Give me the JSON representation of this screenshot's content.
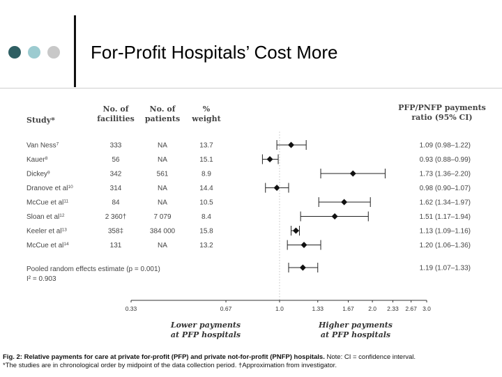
{
  "slide": {
    "title": "For-Profit Hospitals’ Cost More",
    "dot_colors": [
      "#2f5f63",
      "#9ccbd0",
      "#c8c8c8"
    ]
  },
  "table": {
    "headers": {
      "study": "Study*",
      "facilities": [
        "No. of",
        "facilities"
      ],
      "patients": [
        "No. of",
        "patients"
      ],
      "weight": [
        "%",
        "weight"
      ],
      "ratio": [
        "PFP/PNFP payments",
        "ratio (95% CI)"
      ]
    },
    "pooled_label": [
      "Pooled random effects estimate (p = 0.001)",
      "I² = 0.903"
    ]
  },
  "chart_data": {
    "type": "forest",
    "x_scale": "log",
    "xlim": [
      0.33,
      3.0
    ],
    "xticks": [
      "0.33",
      "0.67",
      "1.0",
      "1.33",
      "1.67",
      "2.0",
      "2.33",
      "2.67",
      "3.0"
    ],
    "xtick_values": [
      0.33,
      0.67,
      1.0,
      1.33,
      1.67,
      2.0,
      2.33,
      2.67,
      3.0
    ],
    "reference_line": 1.0,
    "left_label": [
      "Lower payments",
      "at PFP hospitals"
    ],
    "right_label": [
      "Higher payments",
      "at PFP hospitals"
    ],
    "rows": [
      {
        "study": "Van Ness",
        "ref": "7",
        "facilities": "333",
        "patients": "NA",
        "weight": "13.7",
        "ratio_text": "1.09 (0.98–1.22)",
        "est": 1.09,
        "lo": 0.98,
        "hi": 1.22
      },
      {
        "study": "Kauer",
        "ref": "8",
        "facilities": "56",
        "patients": "NA",
        "weight": "15.1",
        "ratio_text": "0.93 (0.88–0.99)",
        "est": 0.93,
        "lo": 0.88,
        "hi": 0.99
      },
      {
        "study": "Dickey",
        "ref": "9",
        "facilities": "342",
        "patients": "561",
        "weight": "8.9",
        "ratio_text": "1.73 (1.36–2.20)",
        "est": 1.73,
        "lo": 1.36,
        "hi": 2.2
      },
      {
        "study": "Dranove et al",
        "ref": "10",
        "facilities": "314",
        "patients": "NA",
        "weight": "14.4",
        "ratio_text": "0.98 (0.90–1.07)",
        "est": 0.98,
        "lo": 0.9,
        "hi": 1.07
      },
      {
        "study": "McCue et al",
        "ref": "11",
        "facilities": "84",
        "patients": "NA",
        "weight": "10.5",
        "ratio_text": "1.62 (1.34–1.97)",
        "est": 1.62,
        "lo": 1.34,
        "hi": 1.97
      },
      {
        "study": "Sloan et al",
        "ref": "12",
        "facilities": "2 360†",
        "patients": "7 079",
        "weight": "8.4",
        "ratio_text": "1.51 (1.17–1.94)",
        "est": 1.51,
        "lo": 1.17,
        "hi": 1.94
      },
      {
        "study": "Keeler et al",
        "ref": "13",
        "facilities": "358‡",
        "patients": "384 000",
        "weight": "15.8",
        "ratio_text": "1.13 (1.09–1.16)",
        "est": 1.13,
        "lo": 1.09,
        "hi": 1.16
      },
      {
        "study": "McCue et al",
        "ref": "14",
        "facilities": "131",
        "patients": "NA",
        "weight": "13.2",
        "ratio_text": "1.20 (1.06–1.36)",
        "est": 1.2,
        "lo": 1.06,
        "hi": 1.36
      }
    ],
    "pooled": {
      "ratio_text": "1.19 (1.07–1.33)",
      "est": 1.19,
      "lo": 1.07,
      "hi": 1.33
    }
  },
  "caption": {
    "line1_bold": "Fig. 2: Relative payments for care at private for-profit (PFP) and private not-for-profit (PNFP) hospitals.",
    "line1_rest": " Note: CI = confidence interval.",
    "line2": "*The studies are in chronological order by midpoint of the data collection period. †Approximation from investigator."
  }
}
